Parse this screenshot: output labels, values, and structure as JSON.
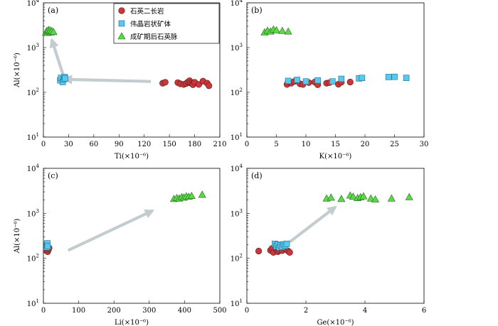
{
  "colors": {
    "granite": "#c8383a",
    "pegmatite": "#58c8ec",
    "vein": "#5ed84a",
    "arrow": "#c3cccf"
  },
  "legend": [
    {
      "key": "granite",
      "label": "石英二长岩",
      "marker": "circle"
    },
    {
      "key": "pegmatite",
      "label": "伟晶岩状矿体",
      "marker": "square"
    },
    {
      "key": "vein",
      "label": "成矿期后石英脉",
      "marker": "triangle"
    }
  ],
  "chart_data": [
    {
      "panel": "(a)",
      "type": "scatter",
      "xlabel": "Ti(×10⁻⁶)",
      "ylabel": "Al(×10⁻⁶)",
      "xlim": [
        0,
        210
      ],
      "xticks": [
        0,
        30,
        60,
        90,
        120,
        150,
        180,
        210
      ],
      "ylog": true,
      "ylim": [
        10,
        10000
      ],
      "yticks": [
        {
          "v": 10,
          "e": "1"
        },
        {
          "v": 100,
          "e": "2"
        },
        {
          "v": 1000,
          "e": "3"
        },
        {
          "v": 10000,
          "e": "4"
        }
      ],
      "series": {
        "granite": [
          [
            142,
            160
          ],
          [
            145,
            168
          ],
          [
            160,
            165
          ],
          [
            163,
            155
          ],
          [
            167,
            150
          ],
          [
            170,
            158
          ],
          [
            172,
            170
          ],
          [
            174,
            182
          ],
          [
            175,
            162
          ],
          [
            177,
            155
          ],
          [
            178,
            148
          ],
          [
            180,
            168
          ],
          [
            185,
            150
          ],
          [
            190,
            178
          ],
          [
            195,
            160
          ],
          [
            197,
            140
          ]
        ],
        "pegmatite": [
          [
            20,
            185
          ],
          [
            21,
            210
          ],
          [
            23,
            170
          ],
          [
            24,
            195
          ],
          [
            25,
            220
          ],
          [
            26,
            205
          ]
        ],
        "vein": [
          [
            3,
            2200
          ],
          [
            4,
            2350
          ],
          [
            5,
            2150
          ],
          [
            6,
            2500
          ],
          [
            7,
            2300
          ],
          [
            8,
            2450
          ],
          [
            9,
            2200
          ],
          [
            10,
            2350
          ],
          [
            12,
            2250
          ]
        ]
      },
      "arrows": [
        [
          128,
          175,
          25,
          195
        ],
        [
          25,
          200,
          10,
          1500
        ]
      ]
    },
    {
      "panel": "(b)",
      "type": "scatter",
      "xlabel": "K(×10⁻⁶)",
      "ylabel": "",
      "xlim": [
        0,
        30
      ],
      "xticks": [
        0,
        5,
        10,
        15,
        20,
        25,
        30
      ],
      "ylog": true,
      "ylim": [
        10,
        10000
      ],
      "yticks": [
        {
          "v": 10,
          "e": "1"
        },
        {
          "v": 100,
          "e": "2"
        },
        {
          "v": 1000,
          "e": "3"
        },
        {
          "v": 10000,
          "e": "4"
        }
      ],
      "series": {
        "granite": [
          [
            6.8,
            150
          ],
          [
            7.5,
            160
          ],
          [
            8.0,
            175
          ],
          [
            8.5,
            180
          ],
          [
            9.0,
            155
          ],
          [
            9.5,
            150
          ],
          [
            10.5,
            165
          ],
          [
            11.5,
            170
          ],
          [
            12.0,
            148
          ],
          [
            13.5,
            160
          ],
          [
            14.0,
            165
          ],
          [
            15.5,
            152
          ],
          [
            16.0,
            168
          ],
          [
            17.5,
            170
          ],
          [
            7.0,
            172
          ]
        ],
        "pegmatite": [
          [
            7.0,
            180
          ],
          [
            8.5,
            190
          ],
          [
            10.0,
            175
          ],
          [
            12.0,
            185
          ],
          [
            14.5,
            175
          ],
          [
            16.0,
            200
          ],
          [
            19.0,
            205
          ],
          [
            19.5,
            210
          ],
          [
            24.0,
            220
          ],
          [
            25.0,
            222
          ],
          [
            27.0,
            210
          ]
        ],
        "vein": [
          [
            3.0,
            2200
          ],
          [
            3.5,
            2400
          ],
          [
            4.0,
            2300
          ],
          [
            4.5,
            2550
          ],
          [
            5.0,
            2450
          ],
          [
            6.0,
            2380
          ],
          [
            7.0,
            2300
          ]
        ]
      },
      "arrows": []
    },
    {
      "panel": "(c)",
      "type": "scatter",
      "xlabel": "Li(×10⁻⁶)",
      "ylabel": "Al(×10⁻⁶)",
      "xlim": [
        0,
        500
      ],
      "xticks": [
        0,
        100,
        200,
        300,
        400,
        500
      ],
      "ylog": true,
      "ylim": [
        10,
        10000
      ],
      "yticks": [
        {
          "v": 10,
          "e": "1"
        },
        {
          "v": 100,
          "e": "2"
        },
        {
          "v": 1000,
          "e": "3"
        },
        {
          "v": 10000,
          "e": "4"
        }
      ],
      "series": {
        "granite": [
          [
            8,
            148
          ],
          [
            10,
            162
          ],
          [
            12,
            140
          ],
          [
            14,
            155
          ],
          [
            16,
            170
          ]
        ],
        "pegmatite": [
          [
            9,
            175
          ],
          [
            10,
            200
          ],
          [
            11,
            215
          ],
          [
            12,
            185
          ]
        ],
        "vein": [
          [
            370,
            2100
          ],
          [
            378,
            2200
          ],
          [
            385,
            2150
          ],
          [
            392,
            2300
          ],
          [
            398,
            2250
          ],
          [
            405,
            2400
          ],
          [
            412,
            2350
          ],
          [
            420,
            2450
          ],
          [
            450,
            2600
          ]
        ]
      },
      "arrows": [
        [
          70,
          150,
          310,
          1150
        ]
      ]
    },
    {
      "panel": "(d)",
      "type": "scatter",
      "xlabel": "Ge(×10⁻⁶)",
      "ylabel": "",
      "xlim": [
        0,
        6
      ],
      "xticks": [
        0,
        2,
        4,
        6
      ],
      "ylog": true,
      "ylim": [
        10,
        10000
      ],
      "yticks": [
        {
          "v": 10,
          "e": "1"
        },
        {
          "v": 100,
          "e": "2"
        },
        {
          "v": 1000,
          "e": "3"
        },
        {
          "v": 10000,
          "e": "4"
        }
      ],
      "series": {
        "granite": [
          [
            0.4,
            145
          ],
          [
            0.8,
            150
          ],
          [
            0.85,
            165
          ],
          [
            0.9,
            135
          ],
          [
            1.0,
            158
          ],
          [
            1.05,
            140
          ],
          [
            1.1,
            150
          ],
          [
            1.15,
            170
          ],
          [
            1.2,
            148
          ],
          [
            1.3,
            162
          ],
          [
            1.4,
            145
          ],
          [
            1.45,
            135
          ]
        ],
        "pegmatite": [
          [
            0.95,
            210
          ],
          [
            1.0,
            185
          ],
          [
            1.05,
            200
          ],
          [
            1.1,
            175
          ],
          [
            1.15,
            195
          ],
          [
            1.2,
            180
          ],
          [
            1.25,
            205
          ],
          [
            1.3,
            190
          ],
          [
            1.35,
            210
          ]
        ],
        "vein": [
          [
            2.7,
            2150
          ],
          [
            2.85,
            2250
          ],
          [
            3.2,
            2100
          ],
          [
            3.5,
            2500
          ],
          [
            3.6,
            2350
          ],
          [
            3.75,
            2200
          ],
          [
            3.85,
            2300
          ],
          [
            3.95,
            2400
          ],
          [
            4.2,
            2150
          ],
          [
            4.35,
            2050
          ],
          [
            4.9,
            2150
          ],
          [
            5.5,
            2300
          ]
        ]
      },
      "arrows": [
        [
          1.45,
          230,
          3.0,
          1380
        ]
      ]
    }
  ]
}
